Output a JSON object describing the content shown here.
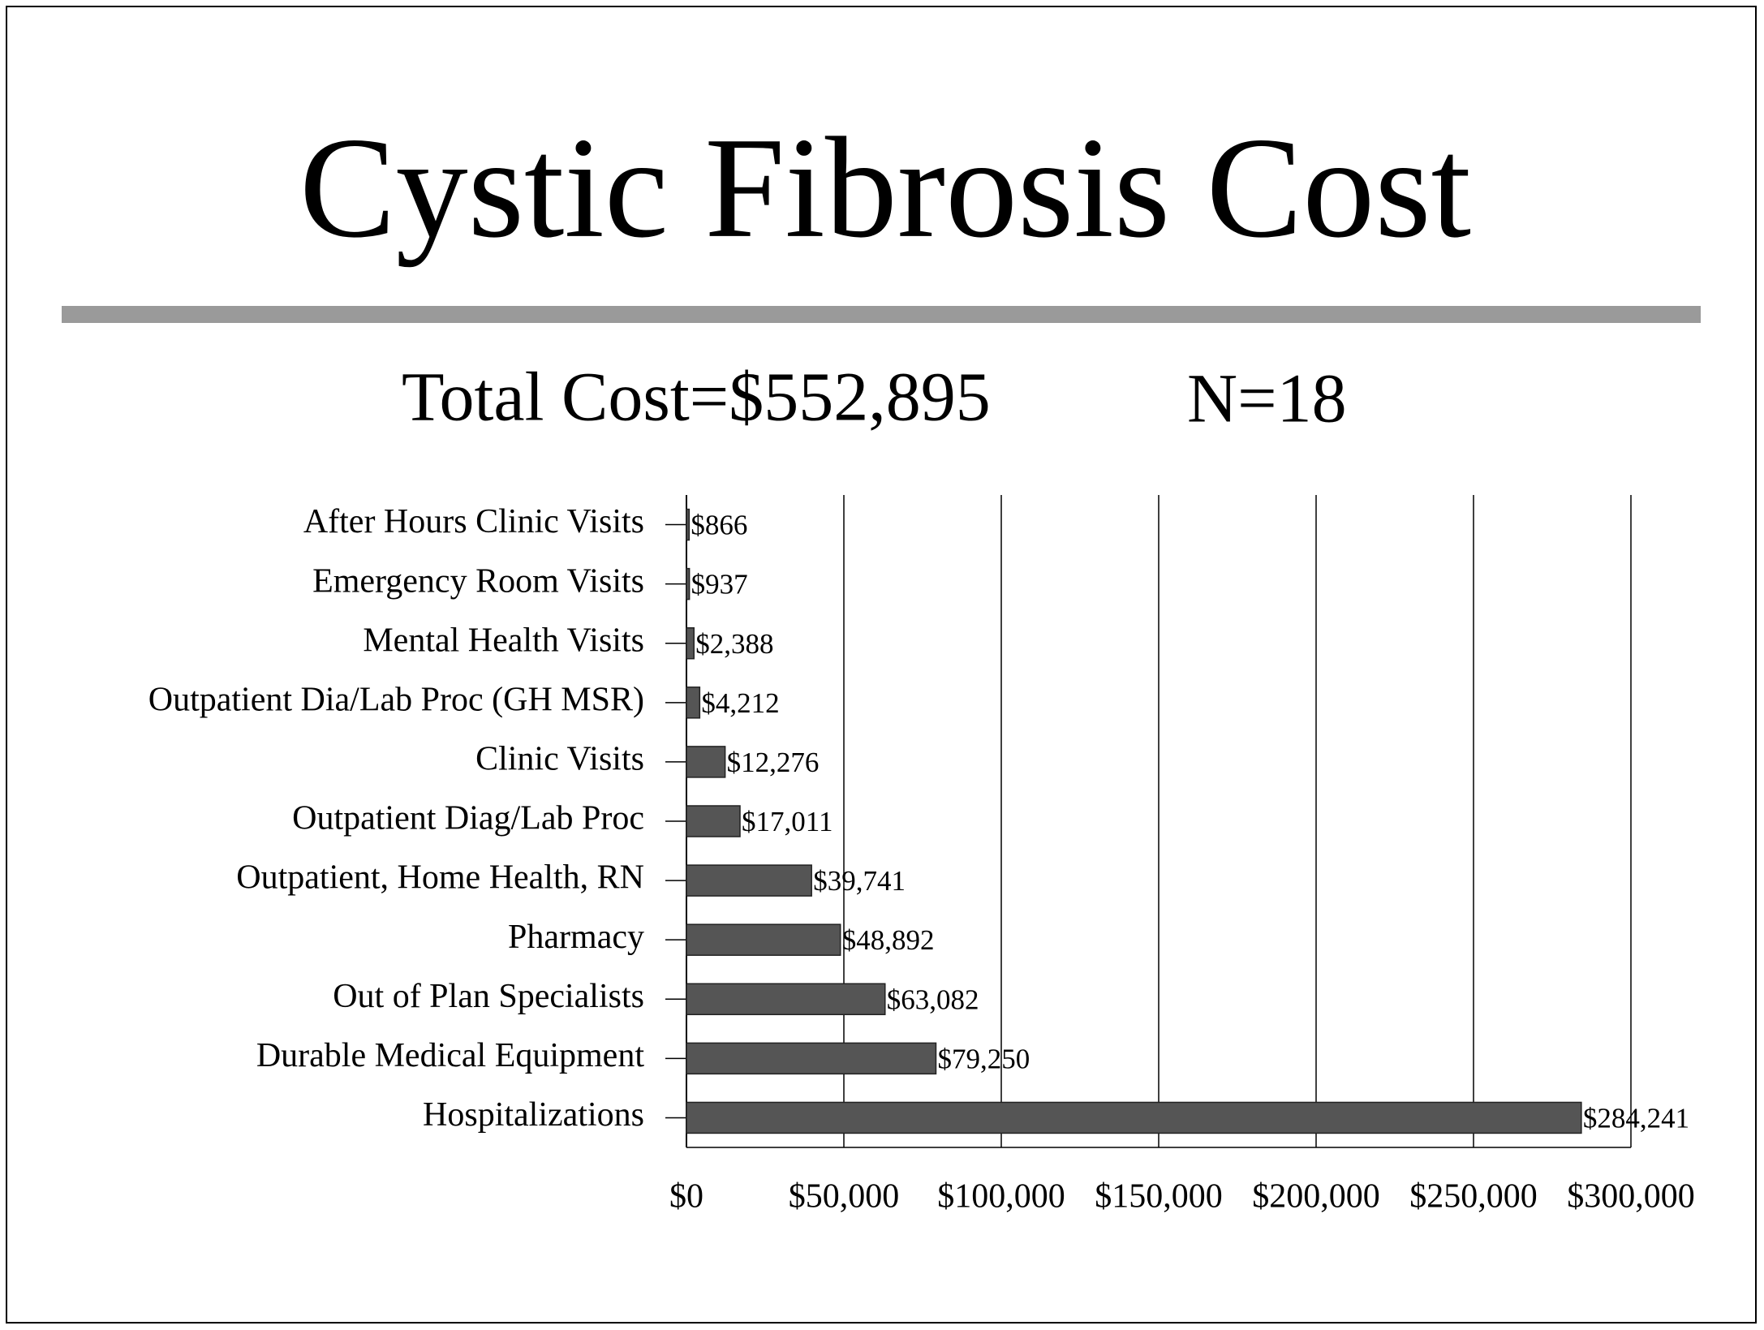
{
  "chart_data": {
    "type": "bar",
    "orientation": "horizontal",
    "title": "Cystic Fibrosis Cost",
    "subtitle": "Total Cost=$552,895",
    "annotations": [
      "N=18"
    ],
    "categories": [
      "After Hours Clinic Visits",
      "Emergency Room Visits",
      "Mental Health Visits",
      "Outpatient Dia/Lab Proc (GH MSR)",
      "Clinic Visits",
      "Outpatient Diag/Lab Proc",
      "Outpatient, Home Health, RN",
      "Pharmacy",
      "Out of Plan Specialists",
      "Durable Medical Equipment",
      "Hospitalizations"
    ],
    "values": [
      866,
      937,
      2388,
      4212,
      12276,
      17011,
      39741,
      48892,
      63082,
      79250,
      284241
    ],
    "value_labels": [
      "$866",
      "$937",
      "$2,388",
      "$4,212",
      "$12,276",
      "$17,011",
      "$39,741",
      "$48,892",
      "$63,082",
      "$79,250",
      "$284,241"
    ],
    "color": "#555555",
    "xlim": [
      0,
      300000
    ],
    "xticks": [
      {
        "value": 0,
        "label": "$0"
      },
      {
        "value": 50000,
        "label": "$50,000"
      },
      {
        "value": 100000,
        "label": "$100,000"
      },
      {
        "value": 150000,
        "label": "$150,000"
      },
      {
        "value": 200000,
        "label": "$200,000"
      },
      {
        "value": 250000,
        "label": "$250,000"
      },
      {
        "value": 300000,
        "label": "$300,000"
      }
    ],
    "grid": true
  }
}
